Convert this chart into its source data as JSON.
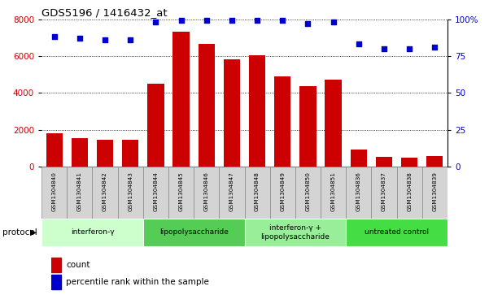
{
  "title": "GDS5196 / 1416432_at",
  "samples": [
    "GSM1304840",
    "GSM1304841",
    "GSM1304842",
    "GSM1304843",
    "GSM1304844",
    "GSM1304845",
    "GSM1304846",
    "GSM1304847",
    "GSM1304848",
    "GSM1304849",
    "GSM1304850",
    "GSM1304851",
    "GSM1304836",
    "GSM1304837",
    "GSM1304838",
    "GSM1304839"
  ],
  "counts": [
    1800,
    1550,
    1480,
    1480,
    4500,
    7300,
    6650,
    5820,
    6050,
    4900,
    4350,
    4700,
    950,
    520,
    490,
    580
  ],
  "percentiles": [
    88,
    87,
    86,
    86,
    98,
    99,
    99,
    99,
    99,
    99,
    97,
    98,
    83,
    80,
    80,
    81
  ],
  "bar_color": "#cc0000",
  "dot_color": "#0000cc",
  "ylim_left": [
    0,
    8000
  ],
  "ylim_right": [
    0,
    100
  ],
  "yticks_left": [
    0,
    2000,
    4000,
    6000,
    8000
  ],
  "yticks_right": [
    0,
    25,
    50,
    75,
    100
  ],
  "ytick_labels_right": [
    "0",
    "25",
    "50",
    "75",
    "100%"
  ],
  "groups": [
    {
      "label": "interferon-γ",
      "start": 0,
      "end": 3,
      "color": "#ccffcc"
    },
    {
      "label": "lipopolysaccharide",
      "start": 4,
      "end": 7,
      "color": "#55cc55"
    },
    {
      "label": "interferon-γ +\nlipopolysaccharide",
      "start": 8,
      "end": 11,
      "color": "#99ee99"
    },
    {
      "label": "untreated control",
      "start": 12,
      "end": 15,
      "color": "#44dd44"
    }
  ],
  "legend_count_label": "count",
  "legend_pct_label": "percentile rank within the sample",
  "protocol_label": "protocol",
  "tick_label_color_left": "#cc0000",
  "tick_label_color_right": "#0000cc"
}
